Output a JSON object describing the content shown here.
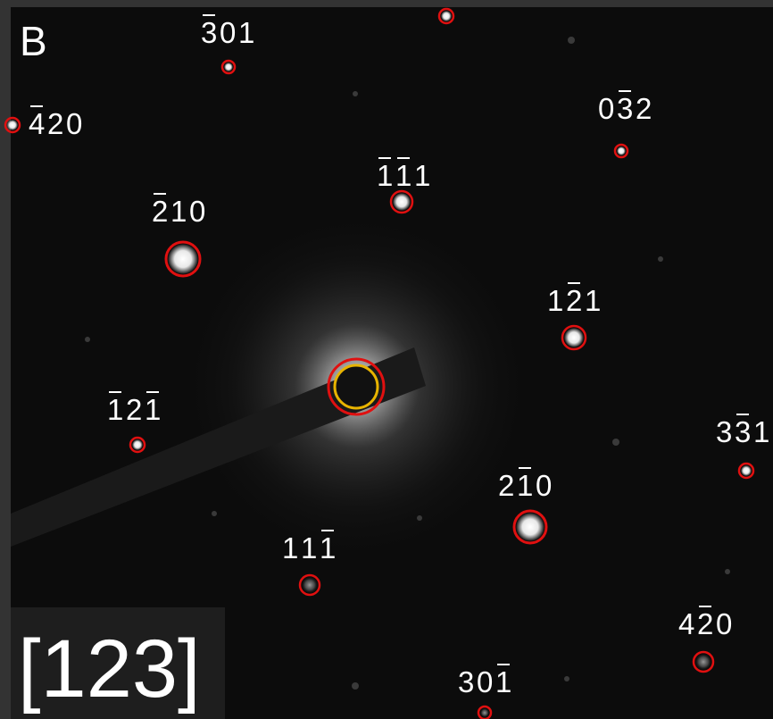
{
  "panel_letter": "B",
  "zone_axis": "[123]",
  "colors": {
    "frame": "#333333",
    "background": "#0c0c0c",
    "spot_ring": "#e01010",
    "center_ring": "#e01010",
    "transmitted_beam_ring": "#e8b400",
    "label": "#ffffff",
    "beam_stop": "#1a1a1a"
  },
  "spots": [
    {
      "id": "top-unlabeled"
    },
    {
      "id": "s-3bar01",
      "parts": [
        {
          "t": "3",
          "bar": true
        },
        {
          "t": "0"
        },
        {
          "t": "1"
        }
      ]
    },
    {
      "id": "s-4bar20",
      "parts": [
        {
          "t": "4",
          "bar": true
        },
        {
          "t": "2"
        },
        {
          "t": "0"
        }
      ]
    },
    {
      "id": "s-03bar2",
      "parts": [
        {
          "t": "0"
        },
        {
          "t": "3",
          "bar": true
        },
        {
          "t": "2"
        }
      ]
    },
    {
      "id": "s-1bar1bar1",
      "parts": [
        {
          "t": "1",
          "bar": true
        },
        {
          "t": "1",
          "bar": true
        },
        {
          "t": "1"
        }
      ]
    },
    {
      "id": "s-2bar10",
      "parts": [
        {
          "t": "2",
          "bar": true
        },
        {
          "t": "1"
        },
        {
          "t": "0"
        }
      ]
    },
    {
      "id": "s-12bar1",
      "parts": [
        {
          "t": "1"
        },
        {
          "t": "2",
          "bar": true
        },
        {
          "t": "1"
        }
      ]
    },
    {
      "id": "s-1bar21bar",
      "parts": [
        {
          "t": "1",
          "bar": true
        },
        {
          "t": "2"
        },
        {
          "t": "1",
          "bar": true
        }
      ]
    },
    {
      "id": "s-33bar1",
      "parts": [
        {
          "t": "3"
        },
        {
          "t": "3",
          "bar": true
        },
        {
          "t": "1"
        }
      ]
    },
    {
      "id": "s-21bar0",
      "parts": [
        {
          "t": "2"
        },
        {
          "t": "1",
          "bar": true
        },
        {
          "t": "0"
        }
      ]
    },
    {
      "id": "s-111bar",
      "parts": [
        {
          "t": "1"
        },
        {
          "t": "1"
        },
        {
          "t": "1",
          "bar": true
        }
      ]
    },
    {
      "id": "s-42bar0",
      "parts": [
        {
          "t": "4"
        },
        {
          "t": "2",
          "bar": true
        },
        {
          "t": "0"
        }
      ]
    },
    {
      "id": "s-301bar",
      "parts": [
        {
          "t": "3"
        },
        {
          "t": "0"
        },
        {
          "t": "1",
          "bar": true
        }
      ]
    }
  ]
}
